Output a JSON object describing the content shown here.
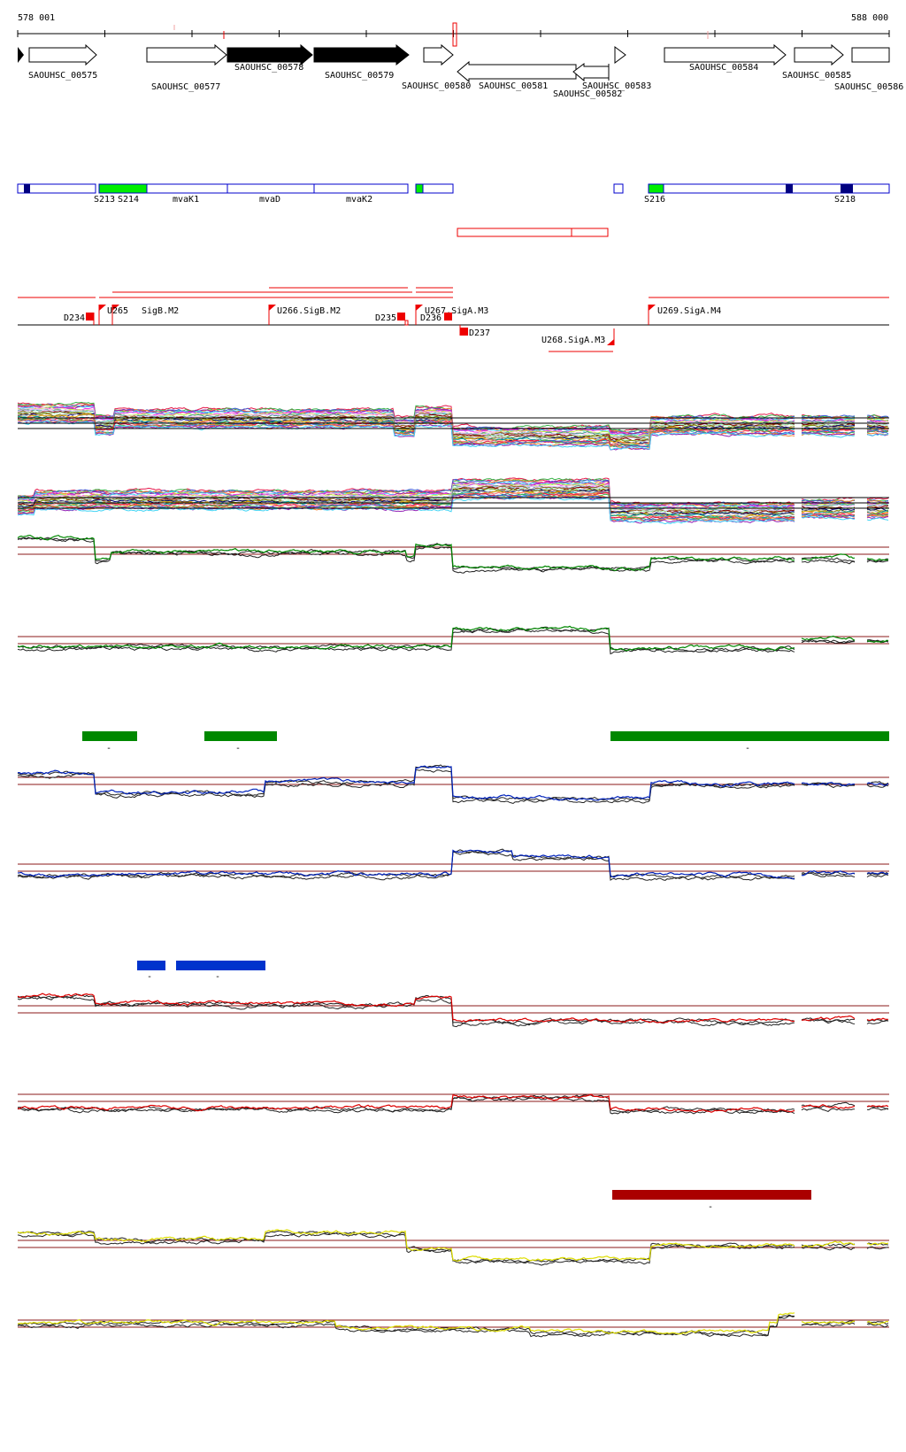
{
  "ruler": {
    "start_label": "578 001",
    "end_label": "588 000",
    "start": 578001,
    "end": 588000
  },
  "genes": [
    {
      "label": "SAOUHSC_00575",
      "dir": "+",
      "filled": false
    },
    {
      "label": "SAOUHSC_00577",
      "dir": "+",
      "filled": false
    },
    {
      "label": "SAOUHSC_00578",
      "dir": "+",
      "filled": true
    },
    {
      "label": "SAOUHSC_00579",
      "dir": "+",
      "filled": true
    },
    {
      "label": "SAOUHSC_00580",
      "dir": "+",
      "filled": false
    },
    {
      "label": "SAOUHSC_00581",
      "dir": "-",
      "filled": false
    },
    {
      "label": "SAOUHSC_00582",
      "dir": "-",
      "filled": false
    },
    {
      "label": "SAOUHSC_00583",
      "dir": "+",
      "filled": false
    },
    {
      "label": "SAOUHSC_00584",
      "dir": "+",
      "filled": false
    },
    {
      "label": "SAOUHSC_00585",
      "dir": "+",
      "filled": false
    },
    {
      "label": "SAOUHSC_00586",
      "dir": "+",
      "filled": false
    }
  ],
  "segments": {
    "labels": [
      "S213",
      "S214",
      "mvaK1",
      "mvaD",
      "mvaK2",
      "S216",
      "S218"
    ]
  },
  "promoters": {
    "labels": [
      "D234",
      "U265",
      "SigB.M2",
      "U266.SigB.M2",
      "D235",
      "U267.SigA.M3",
      "D236",
      "D237",
      "U268.SigA.M3",
      "U269.SigA.M4"
    ]
  },
  "colors": {
    "gene_outline": "#000000",
    "segment_outline": "#0000cc",
    "segment_green": "#00ee00",
    "segment_dark": "#000080",
    "feature_red": "#ee0000",
    "threshold": "#8b1a1a",
    "track_green": "#008800",
    "track_blue": "#0022bb",
    "track_red": "#dd0000",
    "track_yellow": "#dddd00",
    "bar_green": "#008800",
    "bar_blue": "#0033cc",
    "bar_red": "#aa0000"
  },
  "tracks": [
    {
      "name": "expression-upper",
      "color": "#008800"
    },
    {
      "name": "expression-lower",
      "color": "#008800"
    },
    {
      "name": "expression-upper",
      "color": "#0022bb"
    },
    {
      "name": "expression-lower",
      "color": "#0022bb"
    },
    {
      "name": "expression-upper",
      "color": "#dd0000"
    },
    {
      "name": "expression-lower",
      "color": "#dd0000"
    },
    {
      "name": "expression-upper",
      "color": "#dddd00"
    },
    {
      "name": "expression-lower",
      "color": "#dddd00"
    }
  ],
  "bar_marks": [
    "-",
    "-",
    "-",
    "-",
    "-",
    "-"
  ]
}
